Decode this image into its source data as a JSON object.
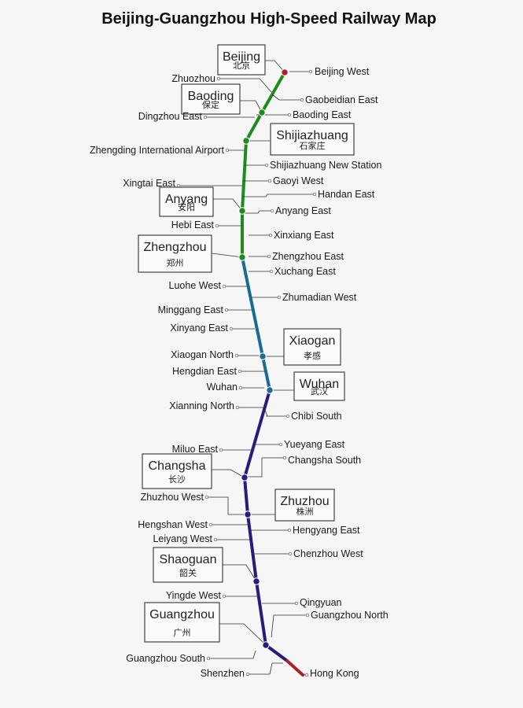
{
  "title": "Beijing-Guangzhou High-Speed Railway Map",
  "colors": {
    "north": "#1f8a1f",
    "middle": "#1a6b8f",
    "south": "#2a1a7a",
    "hk": "#b0202a"
  },
  "major_stations": [
    {
      "id": "beijing",
      "en": "Beijing",
      "zh": "北京"
    },
    {
      "id": "baoding",
      "en": "Baoding",
      "zh": "保定"
    },
    {
      "id": "shijiazhuang",
      "en": "Shijiazhuang",
      "zh": "石家庄"
    },
    {
      "id": "anyang",
      "en": "Anyang",
      "zh": "安阳"
    },
    {
      "id": "zhengzhou",
      "en": "Zhengzhou",
      "zh": "郑州"
    },
    {
      "id": "xiaogan",
      "en": "Xiaogan",
      "zh": "孝感"
    },
    {
      "id": "wuhan",
      "en": "Wuhan",
      "zh": "武汉"
    },
    {
      "id": "changsha",
      "en": "Changsha",
      "zh": "长沙"
    },
    {
      "id": "zhuzhou",
      "en": "Zhuzhou",
      "zh": "株洲"
    },
    {
      "id": "shaoguan",
      "en": "Shaoguan",
      "zh": "韶关"
    },
    {
      "id": "guangzhou",
      "en": "Guangzhou",
      "zh": "广州"
    }
  ],
  "stations": [
    "Beijing West",
    "Zhuozhou",
    "Gaobeidian East",
    "Baoding East",
    "Dingzhou East",
    "Zhengding International Airport",
    "Shijiazhuang New Station",
    "Gaoyi West",
    "Xingtai East",
    "Handan East",
    "Anyang East",
    "Hebi East",
    "Xinxiang East",
    "Zhengzhou East",
    "Xuchang East",
    "Luohe West",
    "Zhumadian West",
    "Minggang East",
    "Xinyang East",
    "Xiaogan North",
    "Hengdian East",
    "Wuhan",
    "Xianning North",
    "Chibi South",
    "Yueyang East",
    "Miluo East",
    "Changsha South",
    "Zhuzhou West",
    "Hengyang East",
    "Hengshan West",
    "Leiyang West",
    "Chenzhou West",
    "Yingde West",
    "Qingyuan",
    "Guangzhou North",
    "Guangzhou South",
    "Shenzhen",
    "Hong Kong"
  ]
}
